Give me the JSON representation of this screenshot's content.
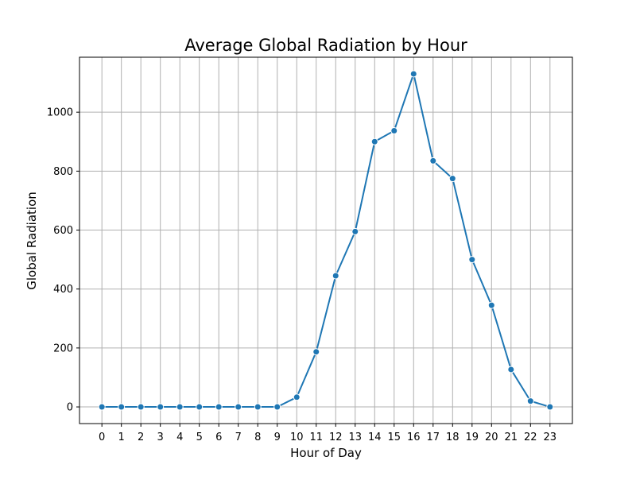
{
  "chart_data": {
    "type": "line",
    "title": "Average Global Radiation by Hour",
    "xlabel": "Hour of Day",
    "ylabel": "Global Radiation",
    "x": [
      0,
      1,
      2,
      3,
      4,
      5,
      6,
      7,
      8,
      9,
      10,
      11,
      12,
      13,
      14,
      15,
      16,
      17,
      18,
      19,
      20,
      21,
      22,
      23
    ],
    "x_ticks": [
      "0",
      "1",
      "2",
      "3",
      "4",
      "5",
      "6",
      "7",
      "8",
      "9",
      "10",
      "11",
      "12",
      "13",
      "14",
      "15",
      "16",
      "17",
      "18",
      "19",
      "20",
      "21",
      "22",
      "23"
    ],
    "series": [
      {
        "values": [
          0,
          0,
          0,
          0,
          0,
          0,
          0,
          0,
          0,
          0,
          33,
          187,
          445,
          595,
          900,
          937,
          1130,
          835,
          775,
          500,
          345,
          127,
          20,
          0
        ]
      }
    ],
    "y_ticks": [
      0,
      200,
      400,
      600,
      800,
      1000
    ],
    "xlim": [
      -1.15,
      24.15
    ],
    "ylim": [
      -56.5,
      1186.5
    ],
    "grid": true,
    "legend": "none",
    "colors": {
      "line": "#1f77b4",
      "marker_edge": "#ffffff",
      "grid": "#b0b0b0",
      "frame": "#000000"
    }
  }
}
